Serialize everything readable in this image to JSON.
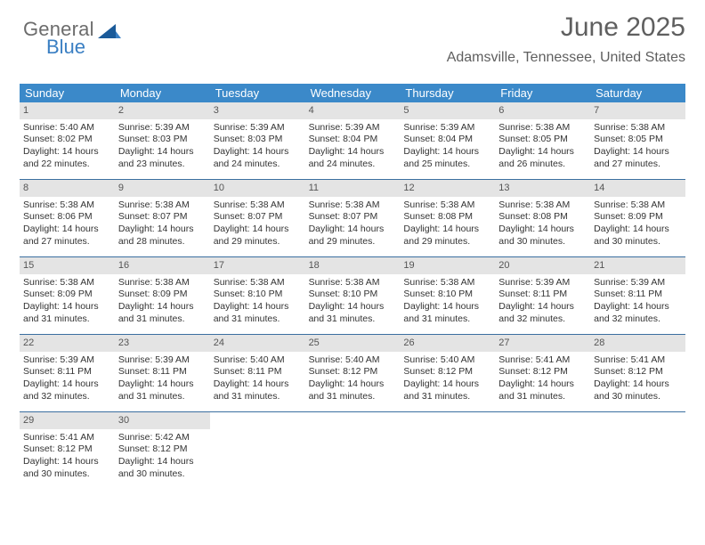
{
  "brand": {
    "word1": "General",
    "word2": "Blue"
  },
  "title": "June 2025",
  "location": "Adamsville, Tennessee, United States",
  "colors": {
    "header_bg": "#3b89c9",
    "header_text": "#ffffff",
    "daynum_bg": "#e4e4e4",
    "week_divider": "#3b6fa0",
    "body_text": "#333333",
    "title_text": "#5f5f5f",
    "brand_gray": "#6c6c6c",
    "brand_blue": "#3a7fc3"
  },
  "columns": [
    "Sunday",
    "Monday",
    "Tuesday",
    "Wednesday",
    "Thursday",
    "Friday",
    "Saturday"
  ],
  "weeks": [
    [
      {
        "n": "1",
        "sr": "5:40 AM",
        "ss": "8:02 PM",
        "dl": "14 hours and 22 minutes."
      },
      {
        "n": "2",
        "sr": "5:39 AM",
        "ss": "8:03 PM",
        "dl": "14 hours and 23 minutes."
      },
      {
        "n": "3",
        "sr": "5:39 AM",
        "ss": "8:03 PM",
        "dl": "14 hours and 24 minutes."
      },
      {
        "n": "4",
        "sr": "5:39 AM",
        "ss": "8:04 PM",
        "dl": "14 hours and 24 minutes."
      },
      {
        "n": "5",
        "sr": "5:39 AM",
        "ss": "8:04 PM",
        "dl": "14 hours and 25 minutes."
      },
      {
        "n": "6",
        "sr": "5:38 AM",
        "ss": "8:05 PM",
        "dl": "14 hours and 26 minutes."
      },
      {
        "n": "7",
        "sr": "5:38 AM",
        "ss": "8:05 PM",
        "dl": "14 hours and 27 minutes."
      }
    ],
    [
      {
        "n": "8",
        "sr": "5:38 AM",
        "ss": "8:06 PM",
        "dl": "14 hours and 27 minutes."
      },
      {
        "n": "9",
        "sr": "5:38 AM",
        "ss": "8:07 PM",
        "dl": "14 hours and 28 minutes."
      },
      {
        "n": "10",
        "sr": "5:38 AM",
        "ss": "8:07 PM",
        "dl": "14 hours and 29 minutes."
      },
      {
        "n": "11",
        "sr": "5:38 AM",
        "ss": "8:07 PM",
        "dl": "14 hours and 29 minutes."
      },
      {
        "n": "12",
        "sr": "5:38 AM",
        "ss": "8:08 PM",
        "dl": "14 hours and 29 minutes."
      },
      {
        "n": "13",
        "sr": "5:38 AM",
        "ss": "8:08 PM",
        "dl": "14 hours and 30 minutes."
      },
      {
        "n": "14",
        "sr": "5:38 AM",
        "ss": "8:09 PM",
        "dl": "14 hours and 30 minutes."
      }
    ],
    [
      {
        "n": "15",
        "sr": "5:38 AM",
        "ss": "8:09 PM",
        "dl": "14 hours and 31 minutes."
      },
      {
        "n": "16",
        "sr": "5:38 AM",
        "ss": "8:09 PM",
        "dl": "14 hours and 31 minutes."
      },
      {
        "n": "17",
        "sr": "5:38 AM",
        "ss": "8:10 PM",
        "dl": "14 hours and 31 minutes."
      },
      {
        "n": "18",
        "sr": "5:38 AM",
        "ss": "8:10 PM",
        "dl": "14 hours and 31 minutes."
      },
      {
        "n": "19",
        "sr": "5:38 AM",
        "ss": "8:10 PM",
        "dl": "14 hours and 31 minutes."
      },
      {
        "n": "20",
        "sr": "5:39 AM",
        "ss": "8:11 PM",
        "dl": "14 hours and 32 minutes."
      },
      {
        "n": "21",
        "sr": "5:39 AM",
        "ss": "8:11 PM",
        "dl": "14 hours and 32 minutes."
      }
    ],
    [
      {
        "n": "22",
        "sr": "5:39 AM",
        "ss": "8:11 PM",
        "dl": "14 hours and 32 minutes."
      },
      {
        "n": "23",
        "sr": "5:39 AM",
        "ss": "8:11 PM",
        "dl": "14 hours and 31 minutes."
      },
      {
        "n": "24",
        "sr": "5:40 AM",
        "ss": "8:11 PM",
        "dl": "14 hours and 31 minutes."
      },
      {
        "n": "25",
        "sr": "5:40 AM",
        "ss": "8:12 PM",
        "dl": "14 hours and 31 minutes."
      },
      {
        "n": "26",
        "sr": "5:40 AM",
        "ss": "8:12 PM",
        "dl": "14 hours and 31 minutes."
      },
      {
        "n": "27",
        "sr": "5:41 AM",
        "ss": "8:12 PM",
        "dl": "14 hours and 31 minutes."
      },
      {
        "n": "28",
        "sr": "5:41 AM",
        "ss": "8:12 PM",
        "dl": "14 hours and 30 minutes."
      }
    ],
    [
      {
        "n": "29",
        "sr": "5:41 AM",
        "ss": "8:12 PM",
        "dl": "14 hours and 30 minutes."
      },
      {
        "n": "30",
        "sr": "5:42 AM",
        "ss": "8:12 PM",
        "dl": "14 hours and 30 minutes."
      },
      null,
      null,
      null,
      null,
      null
    ]
  ],
  "labels": {
    "sunrise": "Sunrise: ",
    "sunset": "Sunset: ",
    "daylight": "Daylight: "
  }
}
